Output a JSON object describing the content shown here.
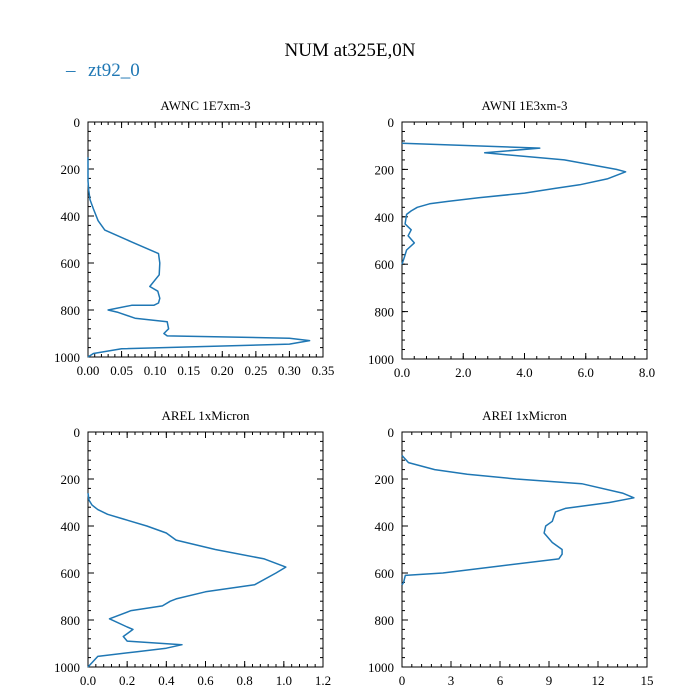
{
  "figure": {
    "title": "NUM at325E,0N",
    "legend_label": "zt92_0",
    "series_color": "#1f77b4"
  },
  "chart_data": [
    {
      "type": "line",
      "title": "AWNC  1E7xm-3",
      "xlim": [
        0,
        0.35
      ],
      "ylim": [
        1000,
        0
      ],
      "xticks": [
        0,
        0.05,
        0.1,
        0.15,
        0.2,
        0.25,
        0.3,
        0.35
      ],
      "xtick_labels": [
        "0.00",
        "0.05",
        "0.10",
        "0.15",
        "0.20",
        "0.25",
        "0.30",
        "0.35"
      ],
      "yticks": [
        0,
        200,
        400,
        600,
        800,
        1000
      ],
      "ytick_labels": [
        "0",
        "200",
        "400",
        "600",
        "800",
        "1000"
      ],
      "series": [
        {
          "name": "zt92_0",
          "x": [
            0,
            0,
            0.001,
            0.003,
            0.008,
            0.015,
            0.025,
            0.065,
            0.105,
            0.107,
            0.106,
            0.092,
            0.104,
            0.107,
            0.105,
            0.098,
            0.065,
            0.03,
            0.045,
            0.07,
            0.118,
            0.12,
            0.113,
            0.118,
            0.3,
            0.33,
            0.3,
            0.05,
            0.008,
            0
          ],
          "y": [
            150,
            250,
            290,
            330,
            370,
            420,
            460,
            510,
            560,
            600,
            650,
            700,
            720,
            750,
            770,
            780,
            780,
            800,
            810,
            835,
            850,
            880,
            900,
            910,
            920,
            930,
            945,
            965,
            985,
            1000
          ]
        }
      ]
    },
    {
      "type": "line",
      "title": "AWNI  1E3xm-3",
      "xlim": [
        0,
        8
      ],
      "ylim": [
        1000,
        0
      ],
      "xticks": [
        0,
        2,
        4,
        6,
        8
      ],
      "xtick_labels": [
        "0.0",
        "2.0",
        "4.0",
        "6.0",
        "8.0"
      ],
      "yticks": [
        0,
        200,
        400,
        600,
        800,
        1000
      ],
      "ytick_labels": [
        "0",
        "200",
        "400",
        "600",
        "800",
        "1000"
      ],
      "series": [
        {
          "name": "zt92_0",
          "x": [
            0,
            4.5,
            2.7,
            5.3,
            7,
            7.3,
            6.7,
            5.8,
            5,
            4,
            2.5,
            1.5,
            0.9,
            0.5,
            0.3,
            0.15,
            0.1,
            0.3,
            0.2,
            0.4,
            0.15,
            0.08,
            0
          ],
          "y": [
            90,
            110,
            130,
            160,
            200,
            210,
            240,
            265,
            280,
            300,
            320,
            335,
            345,
            360,
            375,
            390,
            430,
            455,
            480,
            510,
            540,
            570,
            600
          ]
        }
      ]
    },
    {
      "type": "line",
      "title": "AREL  1xMicron",
      "xlim": [
        0,
        1.2
      ],
      "ylim": [
        1000,
        0
      ],
      "xticks": [
        0,
        0.2,
        0.4,
        0.6,
        0.8,
        1.0,
        1.2
      ],
      "xtick_labels": [
        "0.0",
        "0.2",
        "0.4",
        "0.6",
        "0.8",
        "1.0",
        "1.2"
      ],
      "yticks": [
        0,
        200,
        400,
        600,
        800,
        1000
      ],
      "ytick_labels": [
        "0",
        "200",
        "400",
        "600",
        "800",
        "1000"
      ],
      "series": [
        {
          "name": "zt92_0",
          "x": [
            0,
            0.005,
            0.02,
            0.05,
            0.1,
            0.18,
            0.3,
            0.4,
            0.45,
            0.65,
            0.9,
            1.01,
            0.96,
            0.85,
            0.6,
            0.45,
            0.42,
            0.38,
            0.22,
            0.11,
            0.2,
            0.23,
            0.18,
            0.2,
            0.48,
            0.4,
            0.25,
            0.05,
            0
          ],
          "y": [
            260,
            290,
            310,
            330,
            350,
            370,
            400,
            430,
            460,
            500,
            540,
            575,
            600,
            650,
            680,
            710,
            720,
            740,
            760,
            795,
            830,
            840,
            870,
            890,
            905,
            920,
            935,
            955,
            1000
          ]
        }
      ]
    },
    {
      "type": "line",
      "title": "AREI  1xMicron",
      "xlim": [
        0,
        15
      ],
      "ylim": [
        1000,
        0
      ],
      "xticks": [
        0,
        3,
        6,
        9,
        12,
        15
      ],
      "xtick_labels": [
        "0",
        "3",
        "6",
        "9",
        "12",
        "15"
      ],
      "yticks": [
        0,
        200,
        400,
        600,
        800,
        1000
      ],
      "ytick_labels": [
        "0",
        "200",
        "400",
        "600",
        "800",
        "1000"
      ],
      "series": [
        {
          "name": "zt92_0",
          "x": [
            0,
            0.4,
            2,
            4,
            7,
            11,
            13.5,
            14.2,
            12.7,
            10,
            9.4,
            9.2,
            8.8,
            8.7,
            9.2,
            9.8,
            9.8,
            9.6,
            6,
            2.5,
            0.2,
            0.1,
            0
          ],
          "y": [
            100,
            130,
            160,
            180,
            200,
            220,
            260,
            280,
            300,
            325,
            340,
            380,
            400,
            430,
            470,
            500,
            520,
            540,
            570,
            600,
            610,
            640,
            650
          ]
        }
      ]
    }
  ]
}
